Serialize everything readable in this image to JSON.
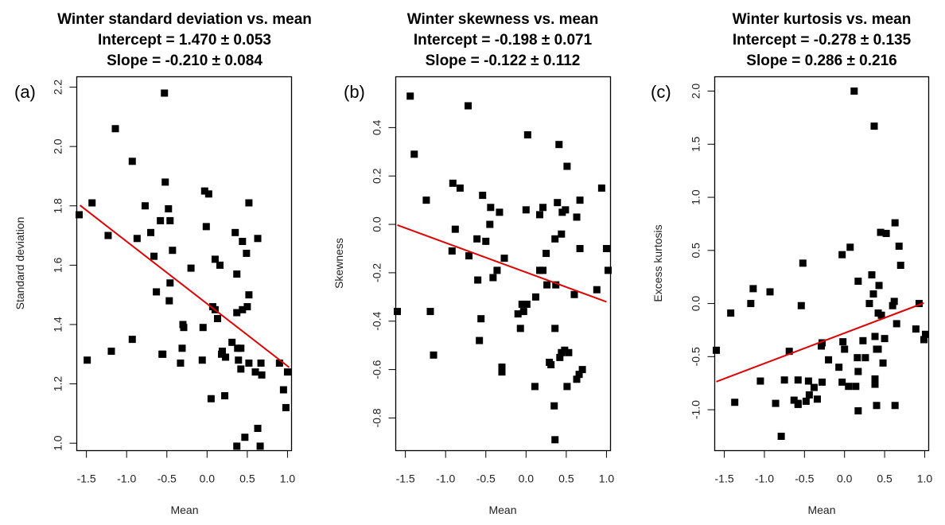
{
  "chart_data": [
    {
      "type": "scatter",
      "panel_label": "(a)",
      "title_lines": [
        "Winter standard deviation vs. mean",
        "Intercept =  1.470 ± 0.053",
        "Slope =  -0.210 ± 0.084"
      ],
      "xlabel": "Mean",
      "ylabel": "Standard deviation",
      "xlim": [
        -1.62,
        1.05
      ],
      "ylim": [
        0.975,
        2.235
      ],
      "xticks": [
        -1.5,
        -1.0,
        -0.5,
        0.0,
        0.5,
        1.0
      ],
      "xtick_labels": [
        "-1.5",
        "-1.0",
        "-0.5",
        "0.0",
        "0.5",
        "1.0"
      ],
      "yticks": [
        1.0,
        1.2,
        1.4,
        1.6,
        1.8,
        2.0,
        2.2
      ],
      "ytick_labels": [
        "1.0",
        "1.2",
        "1.4",
        "1.6",
        "1.8",
        "2.0",
        "2.2"
      ],
      "fit": {
        "intercept": 1.47,
        "slope": -0.21,
        "x_range": [
          -1.58,
          1.02
        ],
        "color": "#dd0000"
      },
      "point_color": "#000000",
      "points": [
        [
          -1.59,
          1.77
        ],
        [
          -1.43,
          1.81
        ],
        [
          -1.23,
          1.7
        ],
        [
          -1.14,
          2.06
        ],
        [
          -0.93,
          1.95
        ],
        [
          -0.87,
          1.69
        ],
        [
          -0.77,
          1.8
        ],
        [
          -0.7,
          1.71
        ],
        [
          -0.66,
          1.63
        ],
        [
          -0.58,
          1.75
        ],
        [
          -0.53,
          2.18
        ],
        [
          -0.52,
          1.88
        ],
        [
          -0.48,
          1.79
        ],
        [
          -0.46,
          1.75
        ],
        [
          -0.43,
          1.65
        ],
        [
          -0.56,
          1.3
        ],
        [
          -0.63,
          1.51
        ],
        [
          -0.46,
          1.54
        ],
        [
          -0.47,
          1.48
        ],
        [
          -0.3,
          1.4
        ],
        [
          -0.29,
          1.39
        ],
        [
          -0.2,
          1.59
        ],
        [
          -0.03,
          1.85
        ],
        [
          0.02,
          1.84
        ],
        [
          -0.01,
          1.73
        ],
        [
          0.1,
          1.62
        ],
        [
          0.16,
          1.6
        ],
        [
          0.07,
          1.46
        ],
        [
          0.1,
          1.45
        ],
        [
          0.13,
          1.42
        ],
        [
          0.35,
          1.71
        ],
        [
          0.44,
          1.68
        ],
        [
          0.49,
          1.64
        ],
        [
          0.37,
          1.57
        ],
        [
          0.44,
          1.45
        ],
        [
          0.5,
          1.46
        ],
        [
          0.52,
          1.5
        ],
        [
          0.52,
          1.81
        ],
        [
          0.63,
          1.69
        ],
        [
          0.37,
          1.44
        ],
        [
          0.42,
          1.32
        ],
        [
          0.38,
          1.32
        ],
        [
          0.18,
          1.3
        ],
        [
          0.23,
          1.29
        ],
        [
          0.19,
          1.31
        ],
        [
          0.31,
          1.34
        ],
        [
          0.39,
          1.28
        ],
        [
          0.42,
          1.25
        ],
        [
          0.52,
          1.27
        ],
        [
          0.6,
          1.24
        ],
        [
          0.67,
          1.27
        ],
        [
          0.68,
          1.23
        ],
        [
          0.9,
          1.27
        ],
        [
          1.0,
          1.24
        ],
        [
          -0.31,
          1.32
        ],
        [
          -0.33,
          1.27
        ],
        [
          -0.06,
          1.28
        ],
        [
          -0.05,
          1.39
        ],
        [
          -1.49,
          1.28
        ],
        [
          -1.19,
          1.31
        ],
        [
          -0.93,
          1.35
        ],
        [
          -0.55,
          1.3
        ],
        [
          0.05,
          1.15
        ],
        [
          0.22,
          1.16
        ],
        [
          0.95,
          1.18
        ],
        [
          0.98,
          1.12
        ],
        [
          0.63,
          1.05
        ],
        [
          0.47,
          1.02
        ],
        [
          0.37,
          0.99
        ],
        [
          0.66,
          0.99
        ]
      ]
    },
    {
      "type": "scatter",
      "panel_label": "(b)",
      "title_lines": [
        "Winter skewness vs. mean",
        "Intercept =  -0.198 ± 0.071",
        "Slope =  -0.122 ± 0.112"
      ],
      "xlabel": "Mean",
      "ylabel": "Skewness",
      "xlim": [
        -1.62,
        1.05
      ],
      "ylim": [
        -0.935,
        0.61
      ],
      "xticks": [
        -1.5,
        -1.0,
        -0.5,
        0.0,
        0.5,
        1.0
      ],
      "xtick_labels": [
        "-1.5",
        "-1.0",
        "-0.5",
        "0.0",
        "0.5",
        "1.0"
      ],
      "yticks": [
        -0.8,
        -0.6,
        -0.4,
        -0.2,
        0.0,
        0.2,
        0.4
      ],
      "ytick_labels": [
        "-0.8",
        "-0.6",
        "-0.4",
        "-0.2",
        "0.0",
        "0.2",
        "0.4"
      ],
      "fit": {
        "intercept": -0.198,
        "slope": -0.122,
        "x_range": [
          -1.6,
          1.0
        ],
        "color": "#dd0000"
      },
      "point_color": "#000000",
      "points": [
        [
          -1.44,
          0.53
        ],
        [
          -0.72,
          0.49
        ],
        [
          -1.39,
          0.29
        ],
        [
          0.02,
          0.37
        ],
        [
          0.41,
          0.33
        ],
        [
          0.51,
          0.24
        ],
        [
          -1.24,
          0.1
        ],
        [
          -0.91,
          0.17
        ],
        [
          -0.82,
          0.15
        ],
        [
          -0.54,
          0.12
        ],
        [
          -0.44,
          0.07
        ],
        [
          -0.88,
          -0.02
        ],
        [
          -1.19,
          -0.36
        ],
        [
          -0.71,
          -0.13
        ],
        [
          -0.5,
          -0.07
        ],
        [
          -0.45,
          0.0
        ],
        [
          -0.61,
          -0.06
        ],
        [
          -0.33,
          0.05
        ],
        [
          -0.36,
          -0.19
        ],
        [
          0.0,
          0.06
        ],
        [
          -0.27,
          -0.14
        ],
        [
          -0.92,
          -0.11
        ],
        [
          0.17,
          0.04
        ],
        [
          0.21,
          0.07
        ],
        [
          0.39,
          0.09
        ],
        [
          0.45,
          0.05
        ],
        [
          0.49,
          0.06
        ],
        [
          0.63,
          0.03
        ],
        [
          0.67,
          0.1
        ],
        [
          0.94,
          0.15
        ],
        [
          0.36,
          -0.06
        ],
        [
          0.44,
          -0.04
        ],
        [
          0.67,
          -0.1
        ],
        [
          -0.41,
          -0.22
        ],
        [
          -0.6,
          -0.23
        ],
        [
          0.17,
          -0.19
        ],
        [
          0.21,
          -0.19
        ],
        [
          0.25,
          -0.12
        ],
        [
          1.0,
          -0.1
        ],
        [
          1.02,
          -0.19
        ],
        [
          0.88,
          -0.27
        ],
        [
          0.26,
          -0.25
        ],
        [
          0.37,
          -0.25
        ],
        [
          0.6,
          -0.29
        ],
        [
          0.12,
          -0.3
        ],
        [
          -0.1,
          -0.37
        ],
        [
          -0.05,
          -0.33
        ],
        [
          0.01,
          -0.33
        ],
        [
          -0.03,
          -0.36
        ],
        [
          -0.07,
          -0.43
        ],
        [
          -0.56,
          -0.39
        ],
        [
          -0.58,
          -0.48
        ],
        [
          -1.6,
          -0.36
        ],
        [
          -1.15,
          -0.54
        ],
        [
          0.36,
          -0.43
        ],
        [
          0.48,
          -0.52
        ],
        [
          0.44,
          -0.53
        ],
        [
          0.53,
          -0.53
        ],
        [
          0.42,
          -0.55
        ],
        [
          -0.3,
          -0.59
        ],
        [
          -0.3,
          -0.61
        ],
        [
          0.29,
          -0.57
        ],
        [
          0.31,
          -0.58
        ],
        [
          0.7,
          -0.6
        ],
        [
          0.66,
          -0.62
        ],
        [
          0.63,
          -0.64
        ],
        [
          0.51,
          -0.67
        ],
        [
          0.11,
          -0.67
        ],
        [
          0.35,
          -0.75
        ],
        [
          0.36,
          -0.89
        ]
      ]
    },
    {
      "type": "scatter",
      "panel_label": "(c)",
      "title_lines": [
        "Winter kurtosis vs. mean",
        "Intercept =  -0.278 ± 0.135",
        "Slope =  0.286 ± 0.216"
      ],
      "xlabel": "Mean",
      "ylabel": "Excess kurtosis",
      "xlim": [
        -1.62,
        1.05
      ],
      "ylim": [
        -1.385,
        2.135
      ],
      "xticks": [
        -1.5,
        -1.0,
        -0.5,
        0.0,
        0.5,
        1.0
      ],
      "xtick_labels": [
        "-1.5",
        "-1.0",
        "-0.5",
        "0.0",
        "0.5",
        "1.0"
      ],
      "yticks": [
        -1.0,
        -0.5,
        0.0,
        0.5,
        1.0,
        1.5,
        2.0
      ],
      "ytick_labels": [
        "-1.0",
        "-0.5",
        "0.0",
        "0.5",
        "1.0",
        "1.5",
        "2.0"
      ],
      "fit": {
        "intercept": -0.278,
        "slope": 0.286,
        "x_range": [
          -1.6,
          0.99
        ],
        "color": "#dd0000"
      },
      "point_color": "#000000",
      "points": [
        [
          0.12,
          2.0
        ],
        [
          0.37,
          1.67
        ],
        [
          0.63,
          0.76
        ],
        [
          0.45,
          0.67
        ],
        [
          0.52,
          0.66
        ],
        [
          0.68,
          0.54
        ],
        [
          0.7,
          0.36
        ],
        [
          0.07,
          0.53
        ],
        [
          -0.03,
          0.46
        ],
        [
          -0.52,
          0.38
        ],
        [
          0.34,
          0.27
        ],
        [
          0.17,
          0.21
        ],
        [
          0.43,
          0.17
        ],
        [
          -1.14,
          0.14
        ],
        [
          -0.93,
          0.11
        ],
        [
          0.36,
          0.09
        ],
        [
          0.31,
          0.0
        ],
        [
          0.62,
          0.02
        ],
        [
          -1.17,
          0.0
        ],
        [
          -0.54,
          -0.02
        ],
        [
          0.93,
          0.0
        ],
        [
          0.6,
          -0.02
        ],
        [
          0.42,
          -0.09
        ],
        [
          0.46,
          -0.11
        ],
        [
          -1.42,
          -0.09
        ],
        [
          0.65,
          -0.19
        ],
        [
          0.89,
          -0.24
        ],
        [
          1.01,
          -0.29
        ],
        [
          0.99,
          -0.34
        ],
        [
          0.38,
          -0.31
        ],
        [
          0.5,
          -0.33
        ],
        [
          0.23,
          -0.35
        ],
        [
          -0.29,
          -0.4
        ],
        [
          -0.28,
          -0.37
        ],
        [
          -0.02,
          -0.36
        ],
        [
          0.0,
          -0.43
        ],
        [
          0.4,
          -0.43
        ],
        [
          0.42,
          -0.43
        ],
        [
          -1.6,
          -0.44
        ],
        [
          -0.69,
          -0.45
        ],
        [
          0.16,
          -0.51
        ],
        [
          0.26,
          -0.51
        ],
        [
          -0.2,
          -0.53
        ],
        [
          0.48,
          -0.56
        ],
        [
          -0.07,
          -0.6
        ],
        [
          0.17,
          -0.64
        ],
        [
          0.38,
          -0.71
        ],
        [
          0.38,
          -0.76
        ],
        [
          -1.05,
          -0.73
        ],
        [
          -0.75,
          -0.72
        ],
        [
          -0.58,
          -0.72
        ],
        [
          -0.45,
          -0.73
        ],
        [
          -0.28,
          -0.74
        ],
        [
          -0.03,
          -0.74
        ],
        [
          0.05,
          -0.78
        ],
        [
          0.14,
          -0.78
        ],
        [
          -0.38,
          -0.79
        ],
        [
          -0.44,
          -0.86
        ],
        [
          -0.48,
          -0.92
        ],
        [
          -0.58,
          -0.94
        ],
        [
          -0.63,
          -0.91
        ],
        [
          -0.86,
          -0.94
        ],
        [
          -0.58,
          -0.95
        ],
        [
          -0.34,
          -0.9
        ],
        [
          -1.37,
          -0.93
        ],
        [
          0.4,
          -0.96
        ],
        [
          0.63,
          -0.96
        ],
        [
          0.17,
          -1.01
        ],
        [
          -0.79,
          -1.25
        ]
      ]
    }
  ]
}
